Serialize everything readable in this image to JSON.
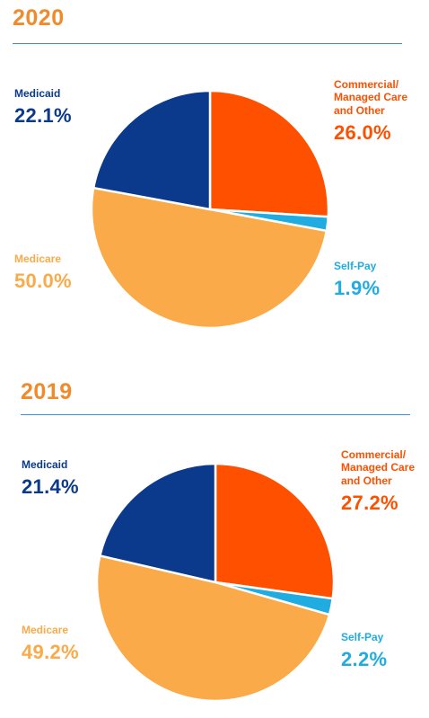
{
  "colors": {
    "heading": "#F08A2A",
    "rule": "#3A8FD9",
    "medicaid": "#0B3A8C",
    "commercial": "#FF5000",
    "selfpay": "#20ACE0",
    "medicare": "#FAAA48"
  },
  "chart_data": [
    {
      "type": "pie",
      "title": "2020",
      "categories": [
        "Commercial/ Managed Care and Other",
        "Self-Pay",
        "Medicare",
        "Medicaid"
      ],
      "values": [
        26.0,
        1.9,
        50.0,
        22.1
      ],
      "value_labels": [
        "26.0%",
        "1.9%",
        "50.0%",
        "22.1%"
      ],
      "legend": "none",
      "labels": {
        "commercial": {
          "name": "Commercial/\nManaged Care\nand Other",
          "pct": "26.0%"
        },
        "selfpay": {
          "name": "Self-Pay",
          "pct": "1.9%"
        },
        "medicare": {
          "name": "Medicare",
          "pct": "50.0%"
        },
        "medicaid": {
          "name": "Medicaid",
          "pct": "22.1%"
        }
      }
    },
    {
      "type": "pie",
      "title": "2019",
      "categories": [
        "Commercial/ Managed Care and Other",
        "Self-Pay",
        "Medicare",
        "Medicaid"
      ],
      "values": [
        27.2,
        2.2,
        49.2,
        21.4
      ],
      "value_labels": [
        "27.2%",
        "2.2%",
        "49.2%",
        "21.4%"
      ],
      "legend": "none",
      "labels": {
        "commercial": {
          "name": "Commercial/\nManaged Care\nand Other",
          "pct": "27.2%"
        },
        "selfpay": {
          "name": "Self-Pay",
          "pct": "2.2%"
        },
        "medicare": {
          "name": "Medicare",
          "pct": "49.2%"
        },
        "medicaid": {
          "name": "Medicaid",
          "pct": "21.4%"
        }
      }
    }
  ]
}
